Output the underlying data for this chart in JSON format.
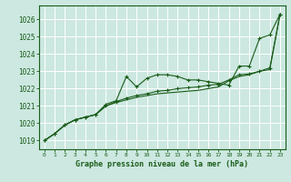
{
  "title": "Graphe pression niveau de la mer (hPa)",
  "bg_color": "#cce8e0",
  "plot_bg_color": "#cce8e0",
  "grid_color": "#ffffff",
  "line_color": "#1a5c1a",
  "spine_color": "#1a5c1a",
  "xlim": [
    -0.5,
    23.5
  ],
  "ylim": [
    1018.5,
    1026.8
  ],
  "yticks": [
    1019,
    1020,
    1021,
    1022,
    1023,
    1024,
    1025,
    1026
  ],
  "xticks": [
    0,
    1,
    2,
    3,
    4,
    5,
    6,
    7,
    8,
    9,
    10,
    11,
    12,
    13,
    14,
    15,
    16,
    17,
    18,
    19,
    20,
    21,
    22,
    23
  ],
  "line1_x": [
    0,
    1,
    2,
    3,
    4,
    5,
    6,
    7,
    8,
    9,
    10,
    11,
    12,
    13,
    14,
    15,
    16,
    17,
    18,
    19,
    20,
    21,
    22,
    23
  ],
  "line1_y": [
    1019.0,
    1019.4,
    1019.9,
    1020.2,
    1020.35,
    1020.5,
    1021.1,
    1021.3,
    1022.7,
    1022.1,
    1022.6,
    1022.8,
    1022.8,
    1022.7,
    1022.5,
    1022.5,
    1022.4,
    1022.3,
    1022.2,
    1023.3,
    1023.3,
    1024.9,
    1025.1,
    1026.3
  ],
  "line2_x": [
    0,
    1,
    2,
    3,
    4,
    5,
    6,
    7,
    8,
    9,
    10,
    11,
    12,
    13,
    14,
    15,
    16,
    17,
    18,
    19,
    20,
    21,
    22,
    23
  ],
  "line2_y": [
    1019.0,
    1019.4,
    1019.9,
    1020.2,
    1020.35,
    1020.5,
    1021.0,
    1021.25,
    1021.45,
    1021.6,
    1021.7,
    1021.85,
    1021.9,
    1022.0,
    1022.05,
    1022.1,
    1022.2,
    1022.25,
    1022.5,
    1022.8,
    1022.85,
    1023.0,
    1023.2,
    1026.3
  ],
  "line3_x": [
    0,
    1,
    2,
    3,
    4,
    5,
    6,
    7,
    8,
    9,
    10,
    11,
    12,
    13,
    14,
    15,
    16,
    17,
    18,
    19,
    20,
    21,
    22,
    23
  ],
  "line3_y": [
    1019.0,
    1019.4,
    1019.9,
    1020.2,
    1020.35,
    1020.5,
    1021.0,
    1021.2,
    1021.35,
    1021.5,
    1021.6,
    1021.7,
    1021.75,
    1021.8,
    1021.85,
    1021.9,
    1022.0,
    1022.1,
    1022.45,
    1022.7,
    1022.8,
    1023.0,
    1023.1,
    1026.3
  ],
  "xlabel_fontsize": 6.0,
  "ytick_fontsize": 5.5,
  "xtick_fontsize": 4.5
}
